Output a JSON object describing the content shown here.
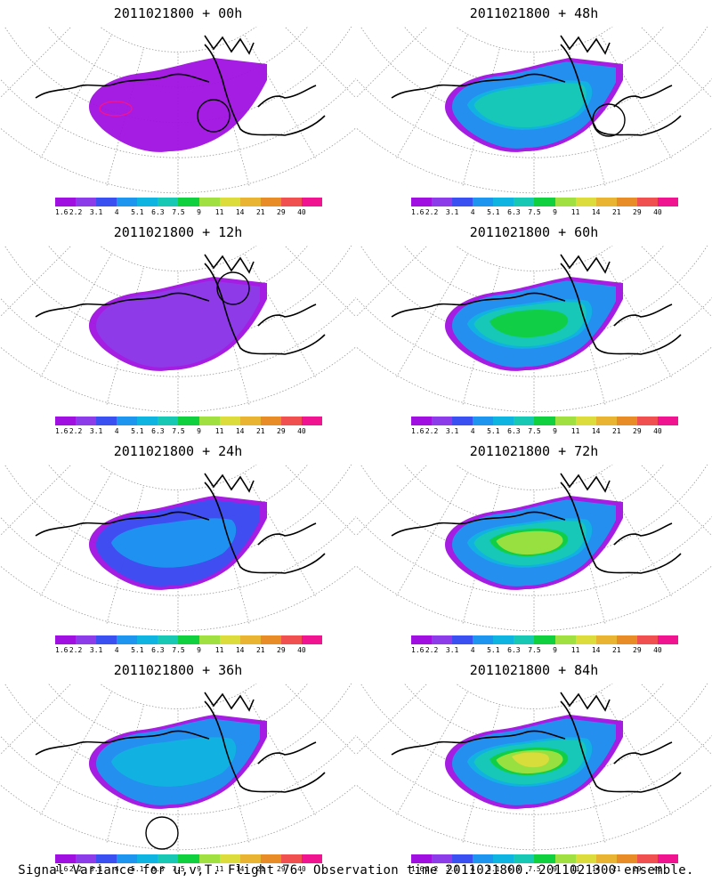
{
  "chart_data": {
    "type": "heatmap",
    "caption": "Signal Variance for u,v,T. Flight 76. Observation time 2011021800. 2011021300 ensemble.",
    "colorbar": {
      "labels": [
        "1.6",
        "2.2",
        "3.1",
        "4",
        "5.1",
        "6.3",
        "7.5",
        "9",
        "11",
        "14",
        "21",
        "29",
        "40"
      ],
      "colors": [
        "#a010e0",
        "#8c3ce8",
        "#3a50f0",
        "#1e96f0",
        "#10b4e0",
        "#18c8b4",
        "#10d040",
        "#a0e040",
        "#dcdc3c",
        "#e8b432",
        "#e88c28",
        "#f05050",
        "#f01490"
      ]
    },
    "panels": [
      {
        "title": "2011021800 + 00h",
        "lead_hours": 0,
        "column": "left",
        "row": 1
      },
      {
        "title": "2011021800 + 12h",
        "lead_hours": 12,
        "column": "left",
        "row": 2
      },
      {
        "title": "2011021800 + 24h",
        "lead_hours": 24,
        "column": "left",
        "row": 3
      },
      {
        "title": "2011021800 + 36h",
        "lead_hours": 36,
        "column": "left",
        "row": 4
      },
      {
        "title": "2011021800 + 48h",
        "lead_hours": 48,
        "column": "right",
        "row": 1
      },
      {
        "title": "2011021800 + 60h",
        "lead_hours": 60,
        "column": "right",
        "row": 2
      },
      {
        "title": "2011021800 + 72h",
        "lead_hours": 72,
        "column": "right",
        "row": 3
      },
      {
        "title": "2011021800 + 84h",
        "lead_hours": 84,
        "column": "right",
        "row": 4
      }
    ]
  }
}
